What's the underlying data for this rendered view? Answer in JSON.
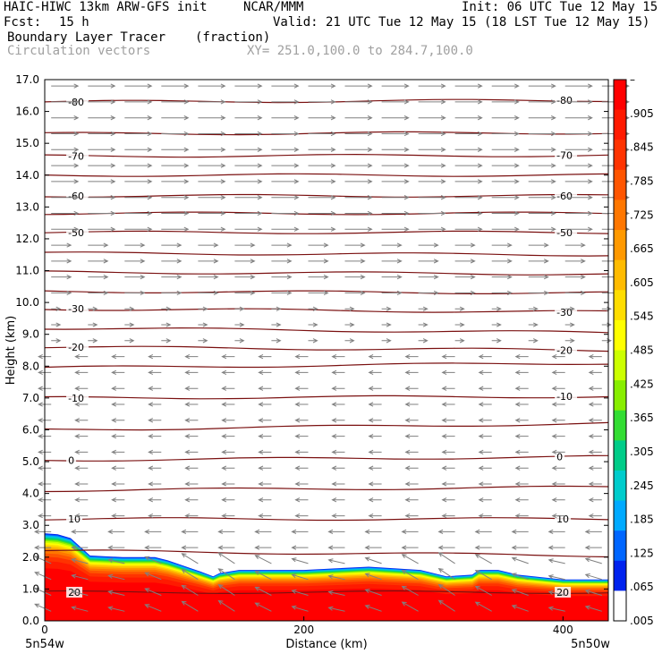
{
  "header": {
    "model": "HAIC-HIWC 13km ARW-GFS init",
    "org": "NCAR/MMM",
    "init": "Init: 06 UTC Tue 12 May 15",
    "fcst_label": "Fcst:",
    "fcst_value": "15 h",
    "valid": "Valid: 21 UTC Tue 12 May 15 (18 LST Tue 12 May 15)",
    "field": "Boundary Layer Tracer",
    "units": "(fraction)",
    "vectors": "Circulation vectors",
    "xy": "XY= 251.0,100.0 to 284.7,100.0"
  },
  "colors": {
    "contour": "#7a1010",
    "vector": "#808080",
    "frame": "#000000"
  },
  "chart_data": {
    "type": "heatmap",
    "title": "Boundary Layer Tracer (fraction) with Circulation vectors",
    "xlabel": "Distance (km)",
    "ylabel": "Height (km)",
    "xlim": [
      0,
      435
    ],
    "ylim": [
      0,
      17
    ],
    "x_ticks": [
      "0",
      "200",
      "400"
    ],
    "x_tick_values": [
      0,
      200,
      400
    ],
    "y_ticks": [
      "0.0",
      "1.0",
      "2.0",
      "3.0",
      "4.0",
      "5.0",
      "6.0",
      "7.0",
      "8.0",
      "9.0",
      "10.0",
      "11.0",
      "12.0",
      "13.0",
      "14.0",
      "15.0",
      "16.0",
      "17.0"
    ],
    "endpoints": {
      "left": "5n54w",
      "right": "5n50w"
    },
    "colorbar": {
      "labels": [
        "–",
        ".905",
        ".845",
        ".785",
        ".725",
        ".665",
        ".605",
        ".545",
        ".485",
        ".425",
        ".365",
        ".305",
        ".245",
        ".185",
        ".125",
        ".065",
        ".005"
      ],
      "colors": [
        "#ff0000",
        "#ff1a00",
        "#ff3300",
        "#ff5500",
        "#ff7700",
        "#ff9900",
        "#ffbb00",
        "#ffdd00",
        "#ffff00",
        "#ccff00",
        "#88ee00",
        "#33dd33",
        "#00cc88",
        "#00cccc",
        "#00aaff",
        "#0066ff",
        "#0022ee",
        "#ffffff"
      ]
    },
    "tracer_top_km": [
      [
        0,
        2.75
      ],
      [
        10,
        2.72
      ],
      [
        20,
        2.6
      ],
      [
        35,
        2.05
      ],
      [
        60,
        2.0
      ],
      [
        85,
        2.0
      ],
      [
        95,
        1.9
      ],
      [
        120,
        1.55
      ],
      [
        130,
        1.4
      ],
      [
        135,
        1.5
      ],
      [
        150,
        1.6
      ],
      [
        200,
        1.6
      ],
      [
        250,
        1.7
      ],
      [
        290,
        1.6
      ],
      [
        310,
        1.4
      ],
      [
        330,
        1.45
      ],
      [
        335,
        1.6
      ],
      [
        350,
        1.6
      ],
      [
        365,
        1.45
      ],
      [
        400,
        1.3
      ],
      [
        435,
        1.3
      ]
    ],
    "contours": [
      {
        "level": "-80",
        "y_km": 16.3,
        "slope": 0.05
      },
      {
        "level": "",
        "y_km": 15.3,
        "slope": 0.03
      },
      {
        "level": "-70",
        "y_km": 14.6,
        "slope": 0.02
      },
      {
        "level": "",
        "y_km": 14.0,
        "slope": 0.0
      },
      {
        "level": "-60",
        "y_km": 13.35,
        "slope": 0.0
      },
      {
        "level": "",
        "y_km": 12.8,
        "slope": 0.0
      },
      {
        "level": "-50",
        "y_km": 12.2,
        "slope": 0.0
      },
      {
        "level": "",
        "y_km": 11.55,
        "slope": -0.05
      },
      {
        "level": "",
        "y_km": 10.95,
        "slope": -0.05
      },
      {
        "level": "",
        "y_km": 10.35,
        "slope": -0.05
      },
      {
        "level": "-30",
        "y_km": 9.8,
        "slope": -0.1
      },
      {
        "level": "",
        "y_km": 9.2,
        "slope": -0.15
      },
      {
        "level": "-20",
        "y_km": 8.6,
        "slope": -0.1
      },
      {
        "level": "",
        "y_km": 7.95,
        "slope": 0.15
      },
      {
        "level": "-10",
        "y_km": 7.0,
        "slope": 0.05
      },
      {
        "level": "",
        "y_km": 6.0,
        "slope": 0.2
      },
      {
        "level": "0",
        "y_km": 5.05,
        "slope": 0.1
      },
      {
        "level": "",
        "y_km": 4.1,
        "slope": 0.1
      },
      {
        "level": "10",
        "y_km": 3.2,
        "slope": 0.0
      },
      {
        "level": "",
        "y_km": 2.2,
        "slope": -0.15
      },
      {
        "level": "20",
        "y_km": 0.9,
        "slope": 0.0
      }
    ]
  }
}
